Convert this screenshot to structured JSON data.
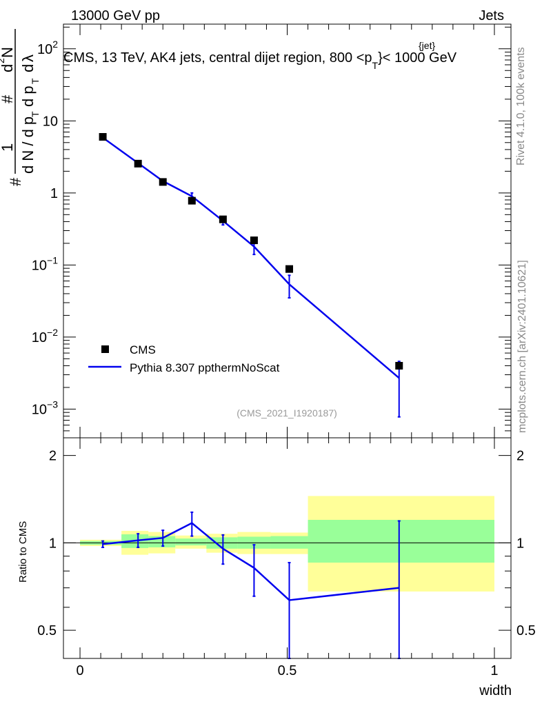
{
  "header": {
    "energy": "13000 GeV pp",
    "category": "Jets",
    "title_main": "CMS, 13 TeV, AK4 jets, central dijet region, 800 <p",
    "title_sup": "{jet}",
    "title_sub": "T",
    "title_end": "}< 1000 GeV"
  },
  "side_labels": {
    "rivet": "Rivet 4.1.0,  100k events",
    "mcplots": "mcplots.cern.ch [arXiv:2401.10621]"
  },
  "analysis_tag": "(CMS_2021_I1920187)",
  "colors": {
    "mc": "#0000ee",
    "data": "#000000",
    "band_inner": "#99ff99",
    "band_outer": "#ffff99"
  },
  "chart_data": [
    {
      "type": "scatter",
      "title": "CMS, 13 TeV, AK4 jets, central dijet region, 800 <p_T^{jet}< 1000 GeV",
      "ylabel": "1/(dN/dpT) d2N/(dpT dlambda)",
      "yscale": "log",
      "ylim": [
        0.0004,
        220
      ],
      "xlim": [
        -0.04,
        1.04
      ],
      "yticks": [
        {
          "v": 0.001,
          "base": "10",
          "exp": "−3"
        },
        {
          "v": 0.01,
          "base": "10",
          "exp": "−2"
        },
        {
          "v": 0.1,
          "base": "10",
          "exp": "−1"
        },
        {
          "v": 1,
          "base": "1",
          "exp": ""
        },
        {
          "v": 10,
          "base": "10",
          "exp": ""
        },
        {
          "v": 100,
          "base": "10",
          "exp": "2"
        }
      ],
      "legend": [
        {
          "name": "CMS",
          "marker": "square"
        },
        {
          "name": "Pythia 8.307 ppthermNoScat",
          "marker": "line"
        }
      ],
      "data_series": {
        "name": "CMS",
        "x": [
          0.055,
          0.14,
          0.2,
          0.27,
          0.345,
          0.42,
          0.505,
          0.77
        ],
        "y": [
          6.0,
          2.55,
          1.42,
          0.78,
          0.43,
          0.22,
          0.088,
          0.004
        ]
      },
      "mc_series": {
        "name": "Pythia 8.307 ppthermNoScat",
        "x": [
          0.055,
          0.14,
          0.2,
          0.27,
          0.345,
          0.42,
          0.505,
          0.77
        ],
        "y": [
          5.85,
          2.6,
          1.46,
          0.9,
          0.41,
          0.18,
          0.054,
          0.0027
        ],
        "err_low": [
          5.6,
          2.5,
          1.38,
          0.8,
          0.36,
          0.14,
          0.035,
          0.00078
        ],
        "err_high": [
          6.1,
          2.7,
          1.55,
          1.0,
          0.46,
          0.22,
          0.072,
          0.0046
        ]
      }
    },
    {
      "type": "line",
      "ylabel": "Ratio to CMS",
      "xlabel": "width",
      "yscale": "log",
      "ylim": [
        0.4,
        2.3
      ],
      "xlim": [
        -0.04,
        1.04
      ],
      "xticks": [
        {
          "v": 0,
          "label": "0"
        },
        {
          "v": 0.5,
          "label": "0.5"
        },
        {
          "v": 1,
          "label": "1"
        }
      ],
      "yticks": [
        {
          "v": 0.5,
          "label": "0.5"
        },
        {
          "v": 1,
          "label": "1"
        },
        {
          "v": 2,
          "label": "2"
        }
      ],
      "bands": [
        {
          "x0": 0.0,
          "x1": 0.1,
          "in_lo": 0.985,
          "in_hi": 1.015,
          "out_lo": 0.975,
          "out_hi": 1.025
        },
        {
          "x0": 0.1,
          "x1": 0.165,
          "in_lo": 0.96,
          "in_hi": 1.07,
          "out_lo": 0.91,
          "out_hi": 1.1
        },
        {
          "x0": 0.165,
          "x1": 0.23,
          "in_lo": 0.965,
          "in_hi": 1.055,
          "out_lo": 0.92,
          "out_hi": 1.09
        },
        {
          "x0": 0.23,
          "x1": 0.305,
          "in_lo": 0.98,
          "in_hi": 1.035,
          "out_lo": 0.955,
          "out_hi": 1.06
        },
        {
          "x0": 0.305,
          "x1": 0.38,
          "in_lo": 0.955,
          "in_hi": 1.045,
          "out_lo": 0.925,
          "out_hi": 1.075
        },
        {
          "x0": 0.38,
          "x1": 0.46,
          "in_lo": 0.955,
          "in_hi": 1.05,
          "out_lo": 0.915,
          "out_hi": 1.09
        },
        {
          "x0": 0.46,
          "x1": 0.55,
          "in_lo": 0.955,
          "in_hi": 1.055,
          "out_lo": 0.915,
          "out_hi": 1.085
        },
        {
          "x0": 0.55,
          "x1": 1.0,
          "in_lo": 0.855,
          "in_hi": 1.2,
          "out_lo": 0.68,
          "out_hi": 1.45
        }
      ],
      "ratio": {
        "x": [
          0.055,
          0.14,
          0.2,
          0.27,
          0.345,
          0.42,
          0.505,
          0.77
        ],
        "y": [
          0.99,
          1.02,
          1.04,
          1.17,
          0.955,
          0.82,
          0.635,
          0.7
        ],
        "err_low": [
          0.965,
          0.965,
          0.975,
          1.055,
          0.845,
          0.655,
          0.4,
          0.4
        ],
        "err_high": [
          1.015,
          1.075,
          1.105,
          1.275,
          1.065,
          0.985,
          0.855,
          1.19
        ]
      }
    }
  ]
}
